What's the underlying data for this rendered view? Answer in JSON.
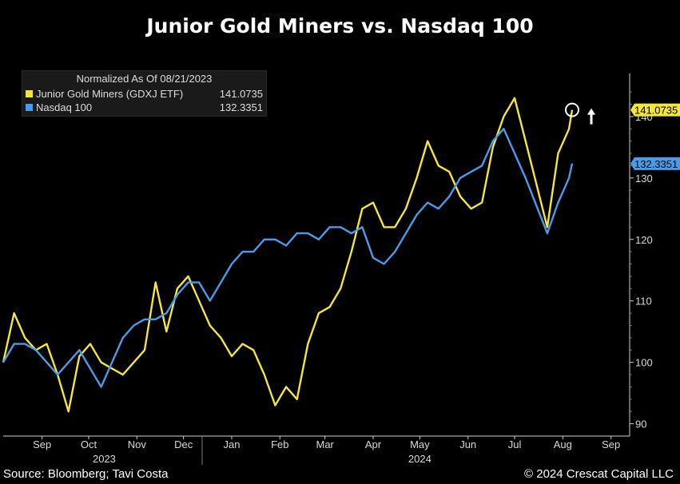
{
  "title": "Junior Gold Miners vs. Nasdaq 100",
  "footer": {
    "source": "Source: Bloomberg; Tavi Costa",
    "copyright": "© 2024 Crescat Capital LLC"
  },
  "legend": {
    "header": "Normalized As Of 08/21/2023",
    "items": [
      {
        "name": "Junior Gold Miners (GDXJ ETF)",
        "value": "141.0735",
        "color": "#f5e63a"
      },
      {
        "name": "Nasdaq 100",
        "value": "132.3351",
        "color": "#4a9bea"
      }
    ]
  },
  "chart_data": {
    "type": "line",
    "x_tick_labels": [
      "Sep",
      "Oct",
      "Nov",
      "Dec",
      "Jan",
      "Feb",
      "Mar",
      "Apr",
      "May",
      "Jun",
      "Jul",
      "Aug",
      "Sep"
    ],
    "year_labels": [
      "2023",
      "2024"
    ],
    "y_ticks": [
      90,
      100,
      110,
      120,
      130,
      140
    ],
    "ylim": [
      88,
      147
    ],
    "xlim": [
      "2023-08-21",
      "2024-09-27"
    ],
    "grid": false,
    "legend_position": "top-left",
    "last_value_labels": [
      "141.0735",
      "132.3351"
    ],
    "annotations": [
      "circle marker at latest Junior Gold Miners value",
      "up arrow"
    ],
    "series": [
      {
        "name": "Junior Gold Miners (GDXJ ETF)",
        "color": "#f5e63a",
        "points": [
          [
            "2023-08-21",
            100
          ],
          [
            "2023-08-28",
            108
          ],
          [
            "2023-09-04",
            104
          ],
          [
            "2023-09-11",
            102
          ],
          [
            "2023-09-18",
            103
          ],
          [
            "2023-09-25",
            98
          ],
          [
            "2023-10-02",
            92
          ],
          [
            "2023-10-09",
            101
          ],
          [
            "2023-10-16",
            103
          ],
          [
            "2023-10-23",
            100
          ],
          [
            "2023-10-30",
            99
          ],
          [
            "2023-11-06",
            98
          ],
          [
            "2023-11-13",
            100
          ],
          [
            "2023-11-20",
            102
          ],
          [
            "2023-11-27",
            113
          ],
          [
            "2023-12-04",
            105
          ],
          [
            "2023-12-11",
            112
          ],
          [
            "2023-12-18",
            114
          ],
          [
            "2023-12-25",
            110
          ],
          [
            "2024-01-01",
            106
          ],
          [
            "2024-01-08",
            104
          ],
          [
            "2024-01-15",
            101
          ],
          [
            "2024-01-22",
            103
          ],
          [
            "2024-01-29",
            102
          ],
          [
            "2024-02-05",
            98
          ],
          [
            "2024-02-12",
            93
          ],
          [
            "2024-02-19",
            96
          ],
          [
            "2024-02-26",
            94
          ],
          [
            "2024-03-04",
            103
          ],
          [
            "2024-03-11",
            108
          ],
          [
            "2024-03-18",
            109
          ],
          [
            "2024-03-25",
            112
          ],
          [
            "2024-04-01",
            118
          ],
          [
            "2024-04-08",
            125
          ],
          [
            "2024-04-15",
            126
          ],
          [
            "2024-04-22",
            122
          ],
          [
            "2024-04-29",
            122
          ],
          [
            "2024-05-06",
            125
          ],
          [
            "2024-05-13",
            130
          ],
          [
            "2024-05-20",
            136
          ],
          [
            "2024-05-27",
            132
          ],
          [
            "2024-06-03",
            131
          ],
          [
            "2024-06-10",
            127
          ],
          [
            "2024-06-17",
            125
          ],
          [
            "2024-06-24",
            126
          ],
          [
            "2024-07-01",
            135
          ],
          [
            "2024-07-08",
            140
          ],
          [
            "2024-07-15",
            143
          ],
          [
            "2024-07-22",
            136
          ],
          [
            "2024-08-05",
            122
          ],
          [
            "2024-08-12",
            134
          ],
          [
            "2024-08-19",
            138
          ],
          [
            "2024-08-21",
            141.0735
          ]
        ]
      },
      {
        "name": "Nasdaq 100",
        "color": "#4a9bea",
        "points": [
          [
            "2023-08-21",
            100
          ],
          [
            "2023-08-28",
            103
          ],
          [
            "2023-09-04",
            103
          ],
          [
            "2023-09-11",
            102
          ],
          [
            "2023-09-18",
            100
          ],
          [
            "2023-09-25",
            98
          ],
          [
            "2023-10-02",
            100
          ],
          [
            "2023-10-09",
            102
          ],
          [
            "2023-10-16",
            99
          ],
          [
            "2023-10-23",
            96
          ],
          [
            "2023-10-30",
            100
          ],
          [
            "2023-11-06",
            104
          ],
          [
            "2023-11-13",
            106
          ],
          [
            "2023-11-20",
            107
          ],
          [
            "2023-11-27",
            107
          ],
          [
            "2023-12-04",
            108
          ],
          [
            "2023-12-11",
            111
          ],
          [
            "2023-12-18",
            113
          ],
          [
            "2023-12-25",
            113
          ],
          [
            "2024-01-01",
            110
          ],
          [
            "2024-01-08",
            113
          ],
          [
            "2024-01-15",
            116
          ],
          [
            "2024-01-22",
            118
          ],
          [
            "2024-01-29",
            118
          ],
          [
            "2024-02-05",
            120
          ],
          [
            "2024-02-12",
            120
          ],
          [
            "2024-02-19",
            119
          ],
          [
            "2024-02-26",
            121
          ],
          [
            "2024-03-04",
            121
          ],
          [
            "2024-03-11",
            120
          ],
          [
            "2024-03-18",
            122
          ],
          [
            "2024-03-25",
            122
          ],
          [
            "2024-04-01",
            121
          ],
          [
            "2024-04-08",
            122
          ],
          [
            "2024-04-15",
            117
          ],
          [
            "2024-04-22",
            116
          ],
          [
            "2024-04-29",
            118
          ],
          [
            "2024-05-06",
            121
          ],
          [
            "2024-05-13",
            124
          ],
          [
            "2024-05-20",
            126
          ],
          [
            "2024-05-27",
            125
          ],
          [
            "2024-06-03",
            127
          ],
          [
            "2024-06-10",
            130
          ],
          [
            "2024-06-17",
            131
          ],
          [
            "2024-06-24",
            132
          ],
          [
            "2024-07-01",
            136
          ],
          [
            "2024-07-08",
            138
          ],
          [
            "2024-07-15",
            134
          ],
          [
            "2024-07-22",
            130
          ],
          [
            "2024-08-05",
            121
          ],
          [
            "2024-08-12",
            126
          ],
          [
            "2024-08-19",
            130
          ],
          [
            "2024-08-21",
            132.3351
          ]
        ]
      }
    ]
  }
}
